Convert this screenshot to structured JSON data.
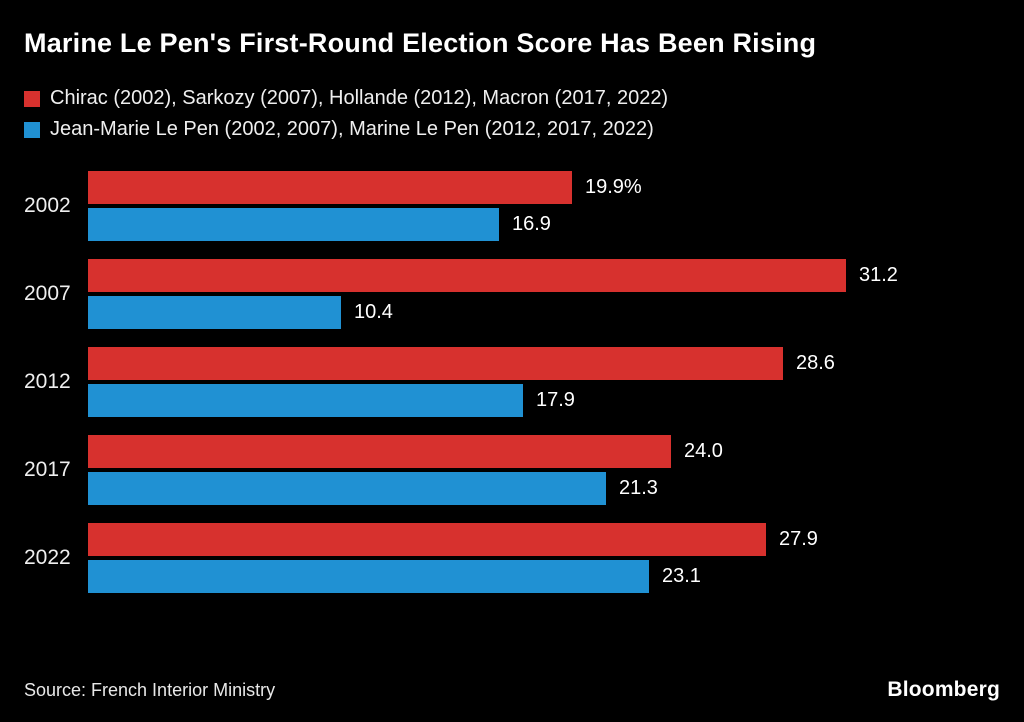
{
  "title": "Marine Le Pen's First-Round Election Score Has Been Rising",
  "legend": [
    {
      "label": "Chirac (2002), Sarkozy (2007), Hollande (2012), Macron (2017, 2022)",
      "color": "#d7312e"
    },
    {
      "label": "Jean-Marie Le Pen (2002, 2007), Marine Le Pen (2012, 2017, 2022)",
      "color": "#2091d3"
    }
  ],
  "chart_data": {
    "type": "bar",
    "orientation": "horizontal",
    "title": "Marine Le Pen's First-Round Election Score Has Been Rising",
    "categories": [
      "2002",
      "2007",
      "2012",
      "2017",
      "2022"
    ],
    "series": [
      {
        "name": "Chirac (2002), Sarkozy (2007), Hollande (2012), Macron (2017, 2022)",
        "color": "#d7312e",
        "values": [
          19.9,
          31.2,
          28.6,
          24.0,
          27.9
        ],
        "labels": [
          "19.9%",
          "31.2",
          "28.6",
          "24.0",
          "27.9"
        ]
      },
      {
        "name": "Jean-Marie Le Pen (2002, 2007), Marine Le Pen (2012, 2017, 2022)",
        "color": "#2091d3",
        "values": [
          16.9,
          10.4,
          17.9,
          21.3,
          23.1
        ],
        "labels": [
          "16.9",
          "10.4",
          "17.9",
          "21.3",
          "23.1"
        ]
      }
    ],
    "xlim": [
      0,
      33
    ],
    "grid": false,
    "legend_position": "top-left",
    "value_labels": "outside-end"
  },
  "footer": {
    "source": "Source: French Interior Ministry",
    "logo": "Bloomberg"
  }
}
